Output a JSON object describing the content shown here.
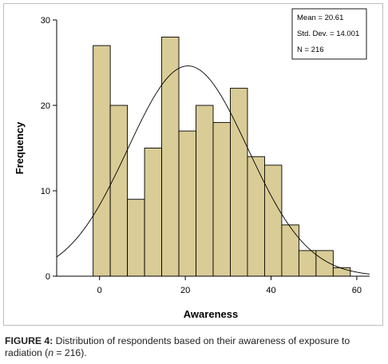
{
  "chart_data": {
    "type": "histogram",
    "title": "",
    "xlabel": "Awareness",
    "ylabel": "Frequency",
    "xlim": [
      -10,
      63
    ],
    "ylim": [
      0,
      30
    ],
    "x_ticks": [
      0,
      20,
      40,
      60
    ],
    "y_ticks": [
      0,
      10,
      20,
      30
    ],
    "bins": [
      {
        "start": -1.5,
        "end": 2.5,
        "count": 27
      },
      {
        "start": 2.5,
        "end": 6.5,
        "count": 20
      },
      {
        "start": 6.5,
        "end": 10.5,
        "count": 9
      },
      {
        "start": 10.5,
        "end": 14.5,
        "count": 15
      },
      {
        "start": 14.5,
        "end": 18.5,
        "count": 28
      },
      {
        "start": 18.5,
        "end": 22.5,
        "count": 17
      },
      {
        "start": 22.5,
        "end": 26.5,
        "count": 20
      },
      {
        "start": 26.5,
        "end": 30.5,
        "count": 18
      },
      {
        "start": 30.5,
        "end": 34.5,
        "count": 22
      },
      {
        "start": 34.5,
        "end": 38.5,
        "count": 14
      },
      {
        "start": 38.5,
        "end": 42.5,
        "count": 13
      },
      {
        "start": 42.5,
        "end": 46.5,
        "count": 6
      },
      {
        "start": 46.5,
        "end": 50.5,
        "count": 3
      },
      {
        "start": 50.5,
        "end": 54.5,
        "count": 3
      },
      {
        "start": 54.5,
        "end": 58.5,
        "count": 1
      }
    ],
    "normal_curve": {
      "mean": 20.61,
      "sd": 14.001,
      "n": 216,
      "bin_width": 4
    },
    "stats_box": {
      "mean": "Mean = 20.61",
      "sd": "Std. Dev. = 14.001",
      "n": "N = 216"
    },
    "legend_placement": "top-right",
    "grid": false,
    "bar_color": "#d9cc96",
    "bar_edge": "#000000"
  },
  "caption": {
    "label": "FIGURE 4:",
    "text_before": " Distribution of respondents based on their awareness of exposure to radiation (",
    "italic": "n",
    "text_after": " = 216)."
  }
}
